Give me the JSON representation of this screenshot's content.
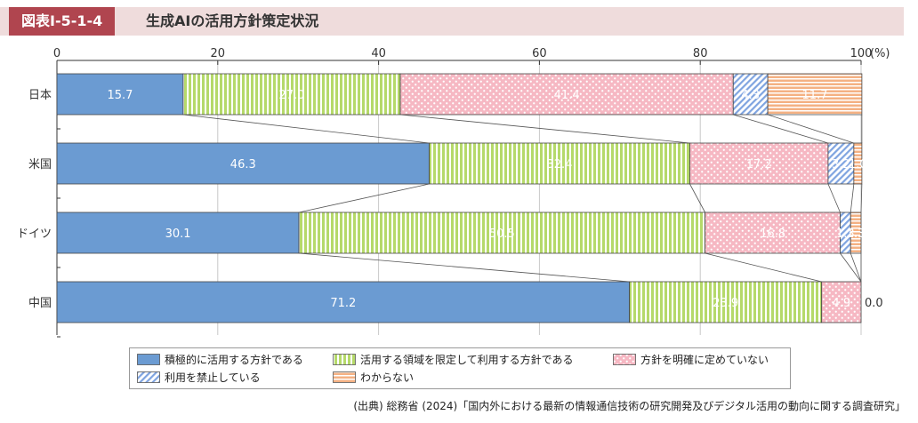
{
  "header": {
    "figure_label": "図表Ⅰ-5-1-4",
    "title": "生成AIの活用方針策定状況"
  },
  "chart_data": {
    "type": "bar",
    "orientation": "horizontal",
    "stacked": true,
    "x_ticks": [
      "0",
      "20",
      "40",
      "60",
      "80",
      "100"
    ],
    "unit_label": "(%)",
    "xlim": [
      0,
      100
    ],
    "categories": [
      "日本",
      "米国",
      "ドイツ",
      "中国"
    ],
    "series": [
      {
        "name": "積極的に活用する方針である",
        "values": [
          15.7,
          46.3,
          30.1,
          71.2
        ],
        "labels": [
          "15.7",
          "46.3",
          "30.1",
          "71.2"
        ],
        "color": "#6b9bd2",
        "pattern": "solid"
      },
      {
        "name": "活用する領域を限定して利用する方針である",
        "values": [
          27.0,
          32.4,
          50.5,
          23.9
        ],
        "labels": [
          "27.0",
          "32.4",
          "50.5",
          "23.9"
        ],
        "color": "#b5d96a",
        "pattern": "vertical-lines"
      },
      {
        "name": "方針を明確に定めていない",
        "values": [
          41.4,
          17.2,
          16.8,
          4.9
        ],
        "labels": [
          "41.4",
          "17.2",
          "16.8",
          "4.9"
        ],
        "color": "#f6b8c3",
        "pattern": "dots"
      },
      {
        "name": "利用を禁止している",
        "values": [
          4.3,
          3.2,
          1.3,
          0.0
        ],
        "labels": [
          "4.3",
          "3.2",
          "1.3",
          "0.0"
        ],
        "color": "#7fa4e0",
        "pattern": "diagonal-lines"
      },
      {
        "name": "わからない",
        "values": [
          11.7,
          1.0,
          1.3,
          0.0
        ],
        "labels": [
          "11.7",
          "1.0",
          "1.3",
          ""
        ],
        "color": "#f4b183",
        "pattern": "horizontal-lines"
      }
    ],
    "legend_position": "bottom",
    "grid": "vertical"
  },
  "source": "(出典) 総務省 (2024)「国内外における最新の情報通信技術の研究開発及びデジタル活用の動向に関する調査研究」"
}
